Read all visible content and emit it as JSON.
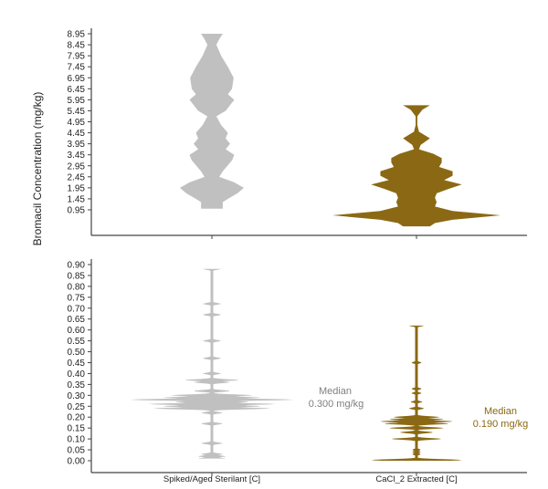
{
  "chart_data": [
    {
      "type": "violin",
      "panel": "top",
      "ylabel": "Bromacil Concentration (mg/kg)",
      "categories": [
        "Spiked/Aged Sterilant [C]",
        "CaCl_2 Extracted [C]"
      ],
      "show_category_labels": false,
      "yticks": [
        "0.95",
        "1.45",
        "1.95",
        "2.45",
        "2.95",
        "3.45",
        "3.95",
        "4.45",
        "4.95",
        "5.45",
        "5.95",
        "6.45",
        "6.95",
        "7.45",
        "7.95",
        "8.45",
        "8.95"
      ],
      "ylim": [
        0.95,
        8.95
      ],
      "grid": false,
      "series": [
        {
          "category": "Spiked/Aged Sterilant [C]",
          "color": "#C0C0C0",
          "profile": [
            [
              1.0,
              0.34
            ],
            [
              1.3,
              0.34
            ],
            [
              1.45,
              0.5
            ],
            [
              1.7,
              0.8
            ],
            [
              1.95,
              1.0
            ],
            [
              2.2,
              0.7
            ],
            [
              2.45,
              0.23
            ],
            [
              2.7,
              0.34
            ],
            [
              3.2,
              0.63
            ],
            [
              3.45,
              0.7
            ],
            [
              3.7,
              0.43
            ],
            [
              3.95,
              0.57
            ],
            [
              4.2,
              0.43
            ],
            [
              4.45,
              0.5
            ],
            [
              4.8,
              0.29
            ],
            [
              5.2,
              0.14
            ],
            [
              5.45,
              0.43
            ],
            [
              5.95,
              0.7
            ],
            [
              6.2,
              0.5
            ],
            [
              6.45,
              0.63
            ],
            [
              6.95,
              0.68
            ],
            [
              7.45,
              0.5
            ],
            [
              7.95,
              0.29
            ],
            [
              8.45,
              0.14
            ],
            [
              8.7,
              0.23
            ],
            [
              8.95,
              0.34
            ]
          ]
        },
        {
          "category": "CaCl_2 Extracted [C]",
          "color": "#8B6914",
          "profile": [
            [
              0.2,
              0.16
            ],
            [
              0.35,
              0.22
            ],
            [
              0.5,
              0.43
            ],
            [
              0.7,
              1.0
            ],
            [
              0.9,
              0.43
            ],
            [
              1.1,
              0.22
            ],
            [
              1.3,
              0.24
            ],
            [
              1.5,
              0.22
            ],
            [
              1.7,
              0.24
            ],
            [
              1.9,
              0.38
            ],
            [
              2.1,
              0.54
            ],
            [
              2.3,
              0.33
            ],
            [
              2.5,
              0.43
            ],
            [
              2.7,
              0.43
            ],
            [
              2.9,
              0.27
            ],
            [
              3.1,
              0.3
            ],
            [
              3.3,
              0.3
            ],
            [
              3.5,
              0.2
            ],
            [
              3.7,
              0.03
            ],
            [
              3.9,
              0.05
            ],
            [
              4.2,
              0.16
            ],
            [
              4.5,
              0.03
            ],
            [
              4.8,
              0.01
            ],
            [
              5.2,
              0.01
            ],
            [
              5.5,
              0.07
            ],
            [
              5.7,
              0.16
            ]
          ]
        }
      ]
    },
    {
      "type": "violin",
      "panel": "bottom",
      "categories": [
        "Spiked/Aged Sterilant [C]",
        "CaCl_2 Extracted [C]"
      ],
      "yticks": [
        "0.00",
        "0.05",
        "0.10",
        "0.15",
        "0.20",
        "0.25",
        "0.30",
        "0.35",
        "0.40",
        "0.45",
        "0.50",
        "0.55",
        "0.60",
        "0.65",
        "0.70",
        "0.75",
        "0.80",
        "0.85",
        "0.90"
      ],
      "ylim": [
        0.0,
        0.9
      ],
      "grid": false,
      "series": [
        {
          "category": "Spiked/Aged Sterilant [C]",
          "color": "#C0C0C0",
          "median_label": "Median",
          "median_value": "0.300 mg/kg",
          "median_color": "#7F7F7F",
          "range": [
            0.01,
            0.88
          ],
          "bumps": [
            [
              0.01,
              0.17
            ],
            [
              0.02,
              0.17
            ],
            [
              0.03,
              0.13
            ],
            [
              0.08,
              0.13
            ],
            [
              0.17,
              0.13
            ],
            [
              0.22,
              0.13
            ],
            [
              0.24,
              0.72
            ],
            [
              0.25,
              0.6
            ],
            [
              0.26,
              0.78
            ],
            [
              0.27,
              0.45
            ],
            [
              0.28,
              1.0
            ],
            [
              0.29,
              0.6
            ],
            [
              0.3,
              0.5
            ],
            [
              0.32,
              0.22
            ],
            [
              0.36,
              0.22
            ],
            [
              0.37,
              0.33
            ],
            [
              0.4,
              0.11
            ],
            [
              0.47,
              0.11
            ],
            [
              0.55,
              0.11
            ],
            [
              0.67,
              0.11
            ],
            [
              0.72,
              0.11
            ],
            [
              0.88,
              0.11
            ]
          ]
        },
        {
          "category": "CaCl_2 Extracted [C]",
          "color": "#8B6914",
          "median_label": "Median",
          "median_value": "0.190 mg/kg",
          "median_color": "#8B6914",
          "range": [
            0.0,
            0.62
          ],
          "bumps": [
            [
              0.003,
              0.55
            ],
            [
              0.03,
              0.05
            ],
            [
              0.04,
              0.05
            ],
            [
              0.05,
              0.05
            ],
            [
              0.1,
              0.3
            ],
            [
              0.13,
              0.2
            ],
            [
              0.15,
              0.33
            ],
            [
              0.17,
              0.39
            ],
            [
              0.18,
              0.44
            ],
            [
              0.19,
              0.33
            ],
            [
              0.2,
              0.28
            ],
            [
              0.24,
              0.09
            ],
            [
              0.27,
              0.07
            ],
            [
              0.31,
              0.06
            ],
            [
              0.33,
              0.06
            ],
            [
              0.45,
              0.06
            ],
            [
              0.62,
              0.09
            ]
          ]
        }
      ]
    }
  ]
}
